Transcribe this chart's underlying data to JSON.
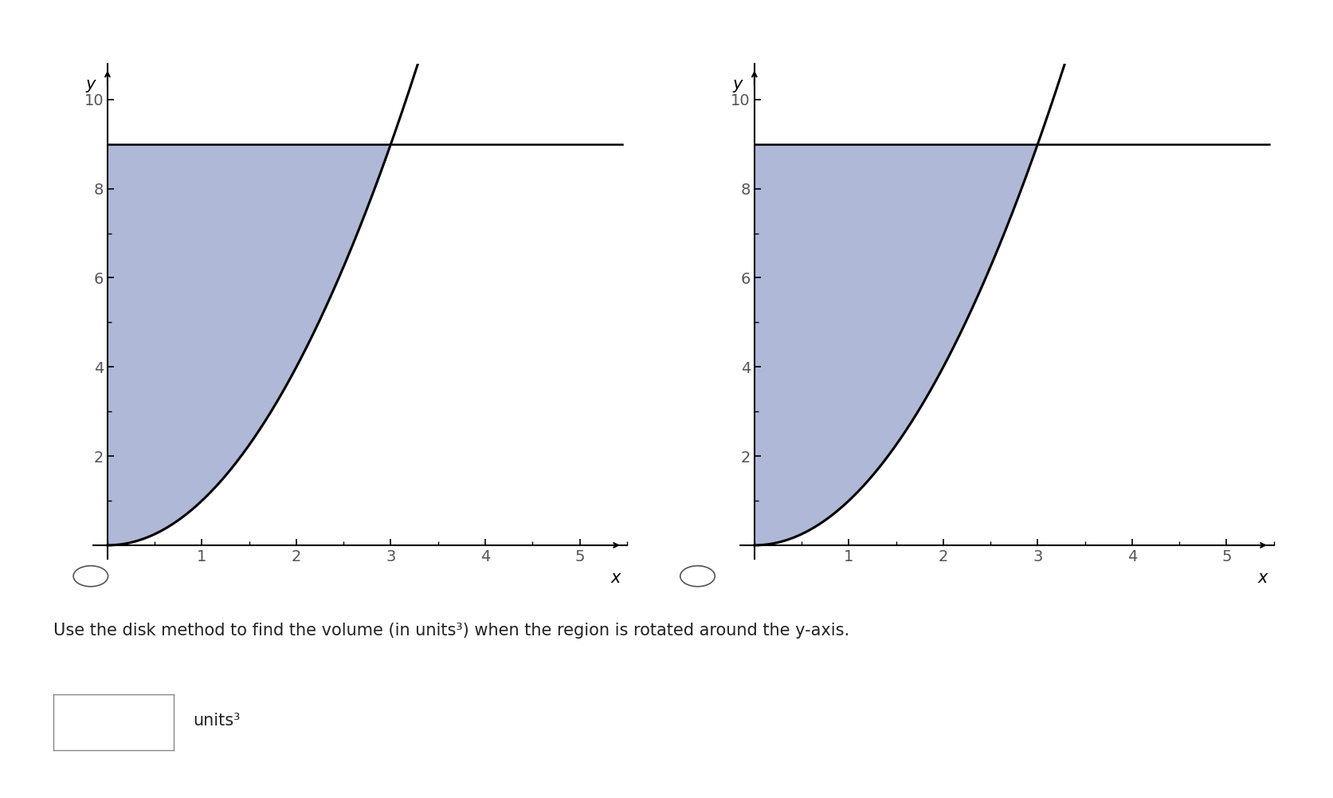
{
  "horizontal_line": 9,
  "x_intersect": 3,
  "xlim": [
    -0.15,
    5.5
  ],
  "ylim": [
    -0.3,
    10.8
  ],
  "x_display_max": 5,
  "y_display_max": 10,
  "xticks": [
    1,
    2,
    3,
    4,
    5
  ],
  "yticks": [
    2,
    4,
    6,
    8,
    10
  ],
  "fill_color": "#b0b8d8",
  "curve_color": "#000000",
  "line_color": "#000000",
  "curve_linewidth": 2.2,
  "line_linewidth": 1.8,
  "xlabel": "x",
  "ylabel": "y",
  "text_below": "Use the disk method to find the volume (in units³) when the region is rotated around the y-axis.",
  "units_label": "units³",
  "background_color": "#ffffff",
  "label_fontsize": 15,
  "tick_fontsize": 14,
  "text_fontsize": 15
}
